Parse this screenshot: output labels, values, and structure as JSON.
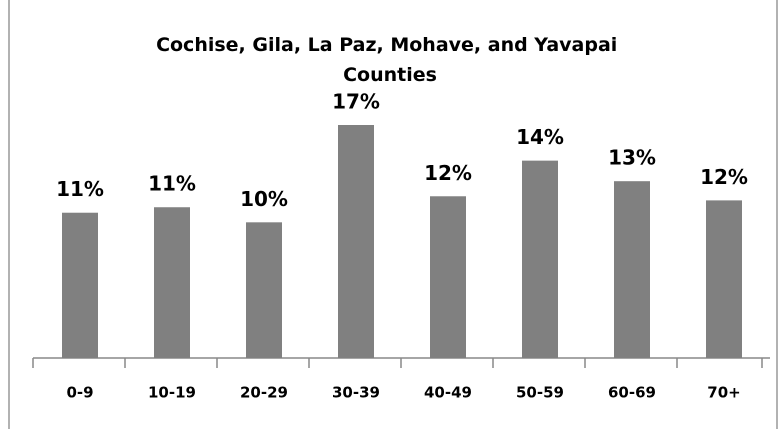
{
  "chart_data": {
    "type": "bar",
    "title": "Cochise, Gila, La Paz, Mohave, and Yavapai Counties",
    "categories": [
      "0-9",
      "10-19",
      "20-29",
      "30-39",
      "40-49",
      "50-59",
      "60-69",
      "70+"
    ],
    "values": [
      10.6,
      11.0,
      9.9,
      17.0,
      11.8,
      14.4,
      12.9,
      11.5
    ],
    "value_labels": [
      "11%",
      "11%",
      "10%",
      "17%",
      "12%",
      "14%",
      "13%",
      "12%"
    ],
    "color": "#808080"
  }
}
